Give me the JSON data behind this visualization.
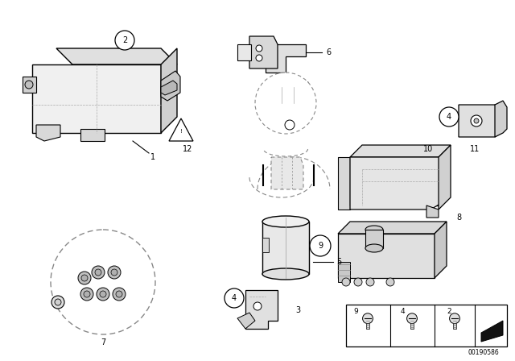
{
  "bg_color": "#ffffff",
  "line_color": "#000000",
  "dashed_color": "#888888",
  "fig_width": 6.4,
  "fig_height": 4.48,
  "part_id": "00190586"
}
